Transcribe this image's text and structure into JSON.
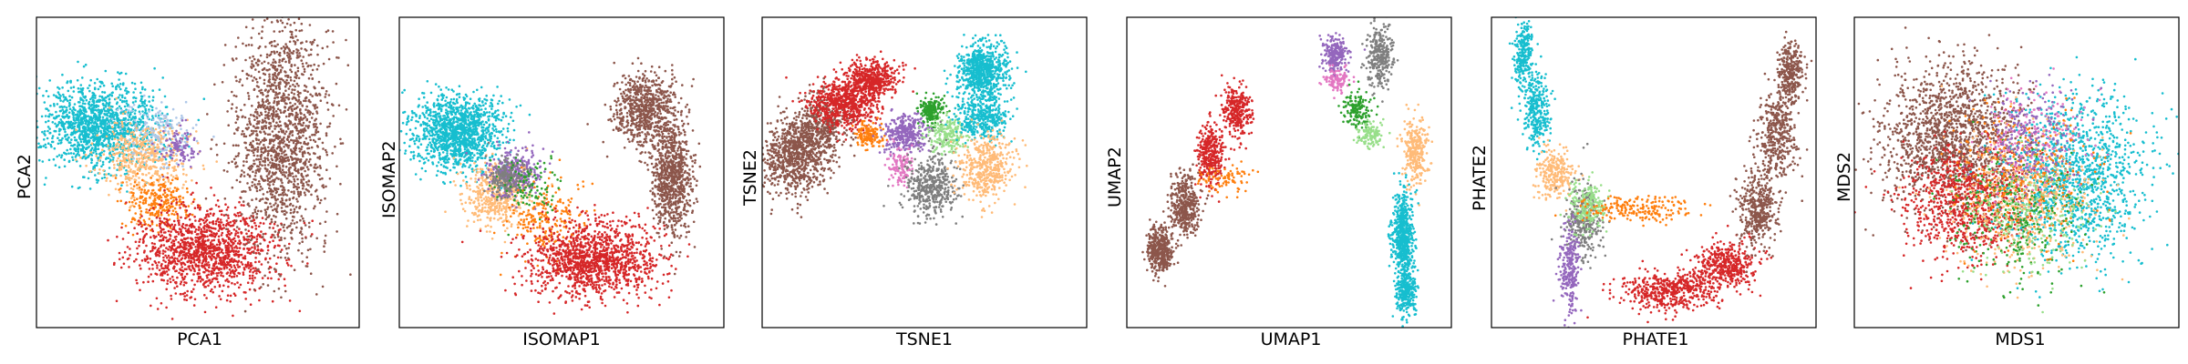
{
  "figure": {
    "background": "#ffffff"
  },
  "palette": {
    "c0": "#1f77b4",
    "c1": "#ff7f0e",
    "c2": "#2ca02c",
    "c3": "#d62728",
    "c4": "#9467bd",
    "c5": "#8c564b",
    "c6": "#e377c2",
    "c7": "#7f7f7f",
    "c8": "#bcbd22",
    "c9": "#17becf",
    "c10": "#aec7e8",
    "c11": "#ffbb78",
    "c12": "#98df8a",
    "c13": "#ff9896",
    "c14": "#c5b0d5"
  },
  "chart_data": [
    {
      "type": "scatter",
      "title": "",
      "xlabel": "PCA1",
      "ylabel": "PCA2",
      "xlim": [
        0,
        100
      ],
      "ylim": [
        0,
        100
      ],
      "xticks": false,
      "yticks": false,
      "grid": false,
      "clusters": [
        {
          "color": "c9",
          "x": 20,
          "y": 65,
          "sx": 9,
          "sy": 7,
          "n": 1400
        },
        {
          "color": "c11",
          "x": 33,
          "y": 55,
          "sx": 7,
          "sy": 6,
          "n": 500
        },
        {
          "color": "c10",
          "x": 38,
          "y": 63,
          "sx": 6,
          "sy": 5,
          "n": 150
        },
        {
          "color": "c4",
          "x": 44,
          "y": 58,
          "sx": 3,
          "sy": 3,
          "n": 100
        },
        {
          "color": "c1",
          "x": 38,
          "y": 40,
          "sx": 5,
          "sy": 4,
          "n": 250
        },
        {
          "color": "c3",
          "x": 52,
          "y": 25,
          "sx": 11,
          "sy": 7,
          "n": 1300
        },
        {
          "color": "c5",
          "x": 76,
          "y": 62,
          "sx": 7,
          "sy": 19,
          "n": 1600
        }
      ]
    },
    {
      "type": "scatter",
      "title": "",
      "xlabel": "ISOMAP1",
      "ylabel": "ISOMAP2",
      "xlim": [
        0,
        100
      ],
      "ylim": [
        0,
        100
      ],
      "xticks": false,
      "yticks": false,
      "grid": false,
      "clusters": [
        {
          "color": "c9",
          "x": 18,
          "y": 63,
          "sx": 7,
          "sy": 6,
          "n": 1300
        },
        {
          "color": "c11",
          "x": 30,
          "y": 43,
          "sx": 5,
          "sy": 5,
          "n": 450
        },
        {
          "color": "c4",
          "x": 35,
          "y": 50,
          "sx": 4,
          "sy": 4,
          "n": 300
        },
        {
          "color": "c7",
          "x": 33,
          "y": 48,
          "sx": 3,
          "sy": 3,
          "n": 200
        },
        {
          "color": "c1",
          "x": 45,
          "y": 35,
          "sx": 6,
          "sy": 6,
          "n": 200
        },
        {
          "color": "c2",
          "x": 40,
          "y": 45,
          "sx": 5,
          "sy": 5,
          "n": 100
        },
        {
          "color": "c3",
          "x": 60,
          "y": 22,
          "sx": 10,
          "sy": 6,
          "n": 1300
        },
        {
          "color": "c5",
          "x": 76,
          "y": 70,
          "sx": 5,
          "sy": 6,
          "n": 700
        },
        {
          "color": "c5",
          "x": 84,
          "y": 48,
          "sx": 3,
          "sy": 9,
          "n": 800
        }
      ]
    },
    {
      "type": "scatter",
      "title": "",
      "xlabel": "TSNE1",
      "ylabel": "TSNE2",
      "xlim": [
        0,
        100
      ],
      "ylim": [
        0,
        100
      ],
      "xticks": false,
      "yticks": false,
      "grid": false,
      "clusters": [
        {
          "color": "c5",
          "x": 10,
          "y": 55,
          "sx": 5,
          "sy": 6,
          "n": 800
        },
        {
          "color": "c5",
          "x": 18,
          "y": 65,
          "sx": 4,
          "sy": 5,
          "n": 400
        },
        {
          "color": "c3",
          "x": 25,
          "y": 72,
          "sx": 5,
          "sy": 4,
          "n": 700
        },
        {
          "color": "c3",
          "x": 34,
          "y": 80,
          "sx": 4,
          "sy": 3,
          "n": 500
        },
        {
          "color": "c1",
          "x": 33,
          "y": 62,
          "sx": 2,
          "sy": 2,
          "n": 150
        },
        {
          "color": "c4",
          "x": 44,
          "y": 62,
          "sx": 3,
          "sy": 3,
          "n": 350
        },
        {
          "color": "c6",
          "x": 43,
          "y": 52,
          "sx": 2,
          "sy": 3,
          "n": 120
        },
        {
          "color": "c2",
          "x": 52,
          "y": 70,
          "sx": 2,
          "sy": 2,
          "n": 200
        },
        {
          "color": "c12",
          "x": 57,
          "y": 62,
          "sx": 3,
          "sy": 3,
          "n": 200
        },
        {
          "color": "c7",
          "x": 52,
          "y": 46,
          "sx": 4,
          "sy": 5,
          "n": 450
        },
        {
          "color": "c9",
          "x": 68,
          "y": 83,
          "sx": 4,
          "sy": 4,
          "n": 700
        },
        {
          "color": "c9",
          "x": 68,
          "y": 68,
          "sx": 4,
          "sy": 4,
          "n": 400
        },
        {
          "color": "c11",
          "x": 69,
          "y": 52,
          "sx": 4,
          "sy": 5,
          "n": 450
        }
      ]
    },
    {
      "type": "scatter",
      "title": "",
      "xlabel": "UMAP1",
      "ylabel": "UMAP2",
      "xlim": [
        0,
        100
      ],
      "ylim": [
        0,
        100
      ],
      "xticks": false,
      "yticks": false,
      "grid": false,
      "clusters": [
        {
          "color": "c5",
          "x": 10,
          "y": 25,
          "sx": 2,
          "sy": 4,
          "n": 400
        },
        {
          "color": "c5",
          "x": 18,
          "y": 40,
          "sx": 2,
          "sy": 5,
          "n": 400
        },
        {
          "color": "c3",
          "x": 26,
          "y": 55,
          "sx": 2,
          "sy": 5,
          "n": 350
        },
        {
          "color": "c3",
          "x": 34,
          "y": 70,
          "sx": 2,
          "sy": 4,
          "n": 300
        },
        {
          "color": "c1",
          "x": 30,
          "y": 48,
          "sx": 4,
          "sy": 2,
          "n": 80
        },
        {
          "color": "c4",
          "x": 64,
          "y": 88,
          "sx": 2,
          "sy": 3,
          "n": 250
        },
        {
          "color": "c7",
          "x": 78,
          "y": 87,
          "sx": 2,
          "sy": 5,
          "n": 300
        },
        {
          "color": "c6",
          "x": 65,
          "y": 80,
          "sx": 2,
          "sy": 2,
          "n": 120
        },
        {
          "color": "c2",
          "x": 71,
          "y": 70,
          "sx": 2,
          "sy": 3,
          "n": 150
        },
        {
          "color": "c12",
          "x": 75,
          "y": 62,
          "sx": 2,
          "sy": 2,
          "n": 120
        },
        {
          "color": "c11",
          "x": 89,
          "y": 57,
          "sx": 2,
          "sy": 5,
          "n": 300
        },
        {
          "color": "c9",
          "x": 85,
          "y": 30,
          "sx": 1.6,
          "sy": 7,
          "n": 600
        },
        {
          "color": "c9",
          "x": 86,
          "y": 12,
          "sx": 1.5,
          "sy": 4,
          "n": 300
        }
      ]
    },
    {
      "type": "scatter",
      "title": "",
      "xlabel": "PHATE1",
      "ylabel": "PHATE2",
      "xlim": [
        0,
        100
      ],
      "ylim": [
        0,
        100
      ],
      "xticks": false,
      "yticks": false,
      "grid": false,
      "clusters": [
        {
          "color": "c9",
          "x": 10,
          "y": 88,
          "sx": 1.5,
          "sy": 5,
          "n": 250
        },
        {
          "color": "c9",
          "x": 14,
          "y": 70,
          "sx": 2,
          "sy": 6,
          "n": 300
        },
        {
          "color": "c11",
          "x": 20,
          "y": 50,
          "sx": 3,
          "sy": 4,
          "n": 250
        },
        {
          "color": "c7",
          "x": 28,
          "y": 35,
          "sx": 3,
          "sy": 6,
          "n": 300
        },
        {
          "color": "c12",
          "x": 30,
          "y": 40,
          "sx": 3,
          "sy": 4,
          "n": 200
        },
        {
          "color": "c4",
          "x": 24,
          "y": 18,
          "sx": 1.5,
          "sy": 7,
          "n": 250
        },
        {
          "color": "c1",
          "x": 45,
          "y": 38,
          "sx": 9,
          "sy": 2,
          "n": 200
        },
        {
          "color": "c3",
          "x": 55,
          "y": 12,
          "sx": 8,
          "sy": 3,
          "n": 500
        },
        {
          "color": "c3",
          "x": 72,
          "y": 20,
          "sx": 5,
          "sy": 4,
          "n": 400
        },
        {
          "color": "c5",
          "x": 82,
          "y": 38,
          "sx": 3,
          "sy": 6,
          "n": 400
        },
        {
          "color": "c5",
          "x": 88,
          "y": 62,
          "sx": 3,
          "sy": 7,
          "n": 400
        },
        {
          "color": "c5",
          "x": 92,
          "y": 82,
          "sx": 2,
          "sy": 5,
          "n": 300
        }
      ]
    },
    {
      "type": "scatter",
      "title": "",
      "xlabel": "MDS1",
      "ylabel": "MDS2",
      "xlim": [
        0,
        100
      ],
      "ylim": [
        0,
        100
      ],
      "xticks": false,
      "yticks": false,
      "grid": false,
      "clusters": [
        {
          "color": "c5",
          "x": 30,
          "y": 62,
          "sx": 11,
          "sy": 12,
          "n": 1500
        },
        {
          "color": "c3",
          "x": 35,
          "y": 40,
          "sx": 10,
          "sy": 9,
          "n": 900
        },
        {
          "color": "c9",
          "x": 68,
          "y": 48,
          "sx": 11,
          "sy": 13,
          "n": 1300
        },
        {
          "color": "c11",
          "x": 52,
          "y": 42,
          "sx": 11,
          "sy": 11,
          "n": 500
        },
        {
          "color": "c2",
          "x": 50,
          "y": 35,
          "sx": 11,
          "sy": 11,
          "n": 300
        },
        {
          "color": "c1",
          "x": 52,
          "y": 50,
          "sx": 11,
          "sy": 11,
          "n": 300
        },
        {
          "color": "c6",
          "x": 55,
          "y": 60,
          "sx": 9,
          "sy": 9,
          "n": 200
        },
        {
          "color": "c4",
          "x": 55,
          "y": 62,
          "sx": 7,
          "sy": 8,
          "n": 200
        },
        {
          "color": "c12",
          "x": 55,
          "y": 35,
          "sx": 10,
          "sy": 10,
          "n": 200
        }
      ]
    }
  ]
}
